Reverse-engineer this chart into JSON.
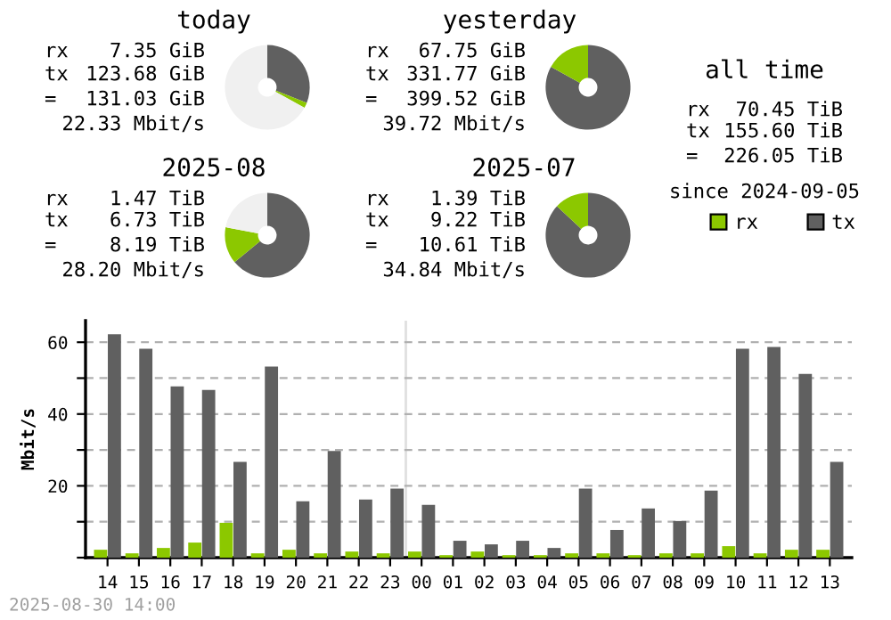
{
  "chart_data": [
    {
      "type": "donut",
      "title": "today",
      "categories": [
        null,
        null,
        null
      ],
      "values": [
        31,
        2,
        67
      ],
      "colors": [
        "#606060",
        "#8cc800",
        "#f0f0f0"
      ],
      "annotations": [
        "rx",
        "7.35 GiB",
        "tx",
        "123.68 GiB",
        "=",
        "131.03 GiB",
        "22.33 Mbit/s"
      ]
    },
    {
      "type": "donut",
      "title": "yesterday",
      "categories": [
        null,
        null
      ],
      "values": [
        83.04,
        16.96
      ],
      "colors": [
        "#606060",
        "#8cc800"
      ],
      "annotations": [
        "rx",
        "67.75 GiB",
        "tx",
        "331.77 GiB",
        "=",
        "399.52 GiB",
        "39.72 Mbit/s"
      ]
    },
    {
      "type": "other",
      "title": "all time",
      "annotations": [
        "rx",
        "70.45 TiB",
        "tx",
        "155.60 TiB",
        "=",
        "226.05 TiB",
        "since 2024-09-05"
      ]
    },
    {
      "type": "donut",
      "title": "2025-08",
      "categories": [
        null,
        null,
        null
      ],
      "values": [
        64,
        14,
        22
      ],
      "colors": [
        "#606060",
        "#8cc800",
        "#f0f0f0"
      ],
      "annotations": [
        "rx",
        "1.47 TiB",
        "tx",
        "6.73 TiB",
        "=",
        "8.19 TiB",
        "28.20 Mbit/s"
      ]
    },
    {
      "type": "donut",
      "title": "2025-07",
      "categories": [
        null,
        null
      ],
      "values": [
        86.9,
        13.1
      ],
      "colors": [
        "#606060",
        "#8cc800"
      ],
      "annotations": [
        "rx",
        "1.39 TiB",
        "tx",
        "9.22 TiB",
        "=",
        "10.61 TiB",
        "34.84 Mbit/s"
      ]
    },
    {
      "type": "bar",
      "ylabel": "Mbit/s",
      "categories": [
        "14",
        "15",
        "16",
        "17",
        "18",
        "19",
        "20",
        "21",
        "22",
        "23",
        "00",
        "01",
        "02",
        "03",
        "04",
        "05",
        "06",
        "07",
        "08",
        "09",
        "10",
        "11",
        "12",
        "13"
      ],
      "series": [
        {
          "name": "rx",
          "color": "#8cc800",
          "values": [
            2.2,
            1.2,
            2.7,
            4.2,
            9.7,
            1.2,
            2.2,
            1.2,
            1.7,
            1.2,
            1.7,
            0.7,
            1.7,
            0.7,
            0.7,
            1.2,
            1.2,
            0.7,
            1.2,
            1.2,
            3.2,
            1.2,
            2.2,
            2.2
          ]
        },
        {
          "name": "tx",
          "color": "#606060",
          "values": [
            62.2,
            58.2,
            47.7,
            46.7,
            26.7,
            53.2,
            15.7,
            29.7,
            16.2,
            19.2,
            14.7,
            4.7,
            3.7,
            4.7,
            2.7,
            19.2,
            7.7,
            13.7,
            10.2,
            18.7,
            58.2,
            58.7,
            51.2,
            26.7
          ]
        }
      ],
      "ylim": [
        0,
        66
      ],
      "yticks": [
        {
          "value": 0,
          "label": null
        },
        {
          "value": 10,
          "label": null
        },
        20,
        {
          "value": 30,
          "label": null
        },
        40,
        {
          "value": 50,
          "label": null
        },
        60
      ],
      "grid": "y",
      "legend": "top right",
      "ref_lines": [
        {
          "axis": "x",
          "value": "00",
          "color": "#e0e0e0"
        }
      ],
      "annotations": [
        "2025-08-30 14:00"
      ]
    }
  ]
}
